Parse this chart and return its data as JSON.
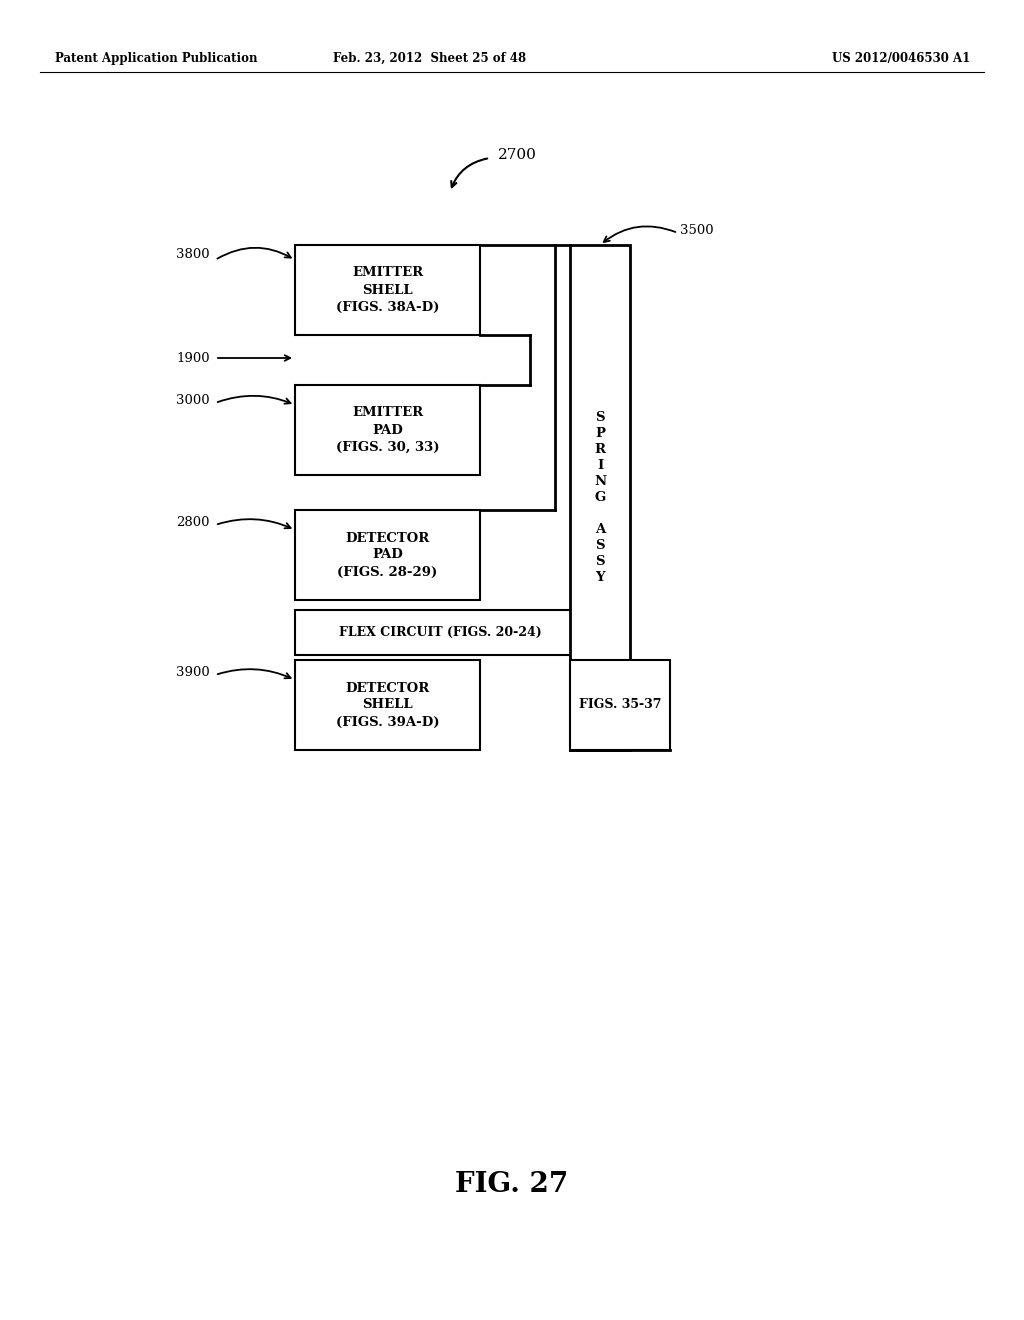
{
  "bg_color": "#ffffff",
  "header_left": "Patent Application Publication",
  "header_mid": "Feb. 23, 2012  Sheet 25 of 48",
  "header_right": "US 2012/0046530 A1",
  "fig_label": "FIG. 27"
}
